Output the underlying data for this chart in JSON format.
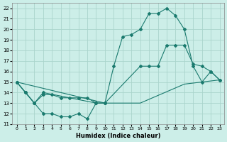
{
  "title": "",
  "xlabel": "Humidex (Indice chaleur)",
  "bg_color": "#cceee8",
  "grid_color": "#aad4cc",
  "line_color": "#1a7a6e",
  "xlim": [
    -0.5,
    23.5
  ],
  "ylim": [
    11,
    22.5
  ],
  "xticks": [
    0,
    1,
    2,
    3,
    4,
    5,
    6,
    7,
    8,
    9,
    10,
    11,
    12,
    13,
    14,
    15,
    16,
    17,
    18,
    19,
    20,
    21,
    22,
    23
  ],
  "yticks": [
    11,
    12,
    13,
    14,
    15,
    16,
    17,
    18,
    19,
    20,
    21,
    22
  ],
  "line_zigzag_x": [
    0,
    1,
    2,
    3,
    4,
    5,
    6,
    7,
    8,
    9,
    10
  ],
  "line_zigzag_y": [
    15,
    14,
    13,
    12,
    12,
    11.7,
    11.7,
    12,
    11.5,
    13,
    13
  ],
  "line_peak_x": [
    0,
    1,
    2,
    3,
    4,
    5,
    6,
    7,
    8,
    9,
    10,
    11,
    12,
    13,
    14,
    15,
    16,
    17,
    18,
    19,
    20,
    21,
    22,
    23
  ],
  "line_peak_y": [
    15,
    14,
    13,
    13.8,
    13.8,
    13.5,
    13.5,
    13.5,
    13.5,
    13,
    13,
    16.5,
    19.3,
    19.5,
    20,
    21.5,
    21.5,
    22,
    21.3,
    20,
    16.5,
    15,
    16,
    15.2
  ],
  "line_trend_x": [
    0,
    1,
    2,
    3,
    9,
    10,
    14,
    15,
    16,
    17,
    18,
    19,
    20,
    21,
    22,
    23
  ],
  "line_trend_y": [
    15,
    14,
    13,
    14,
    13,
    13,
    16.5,
    16.5,
    16.5,
    18.5,
    18.5,
    18.5,
    16.7,
    16.5,
    16,
    15.2
  ],
  "line_slow_x": [
    0,
    10,
    14,
    19,
    23
  ],
  "line_slow_y": [
    15,
    13,
    13,
    14.8,
    15.2
  ]
}
